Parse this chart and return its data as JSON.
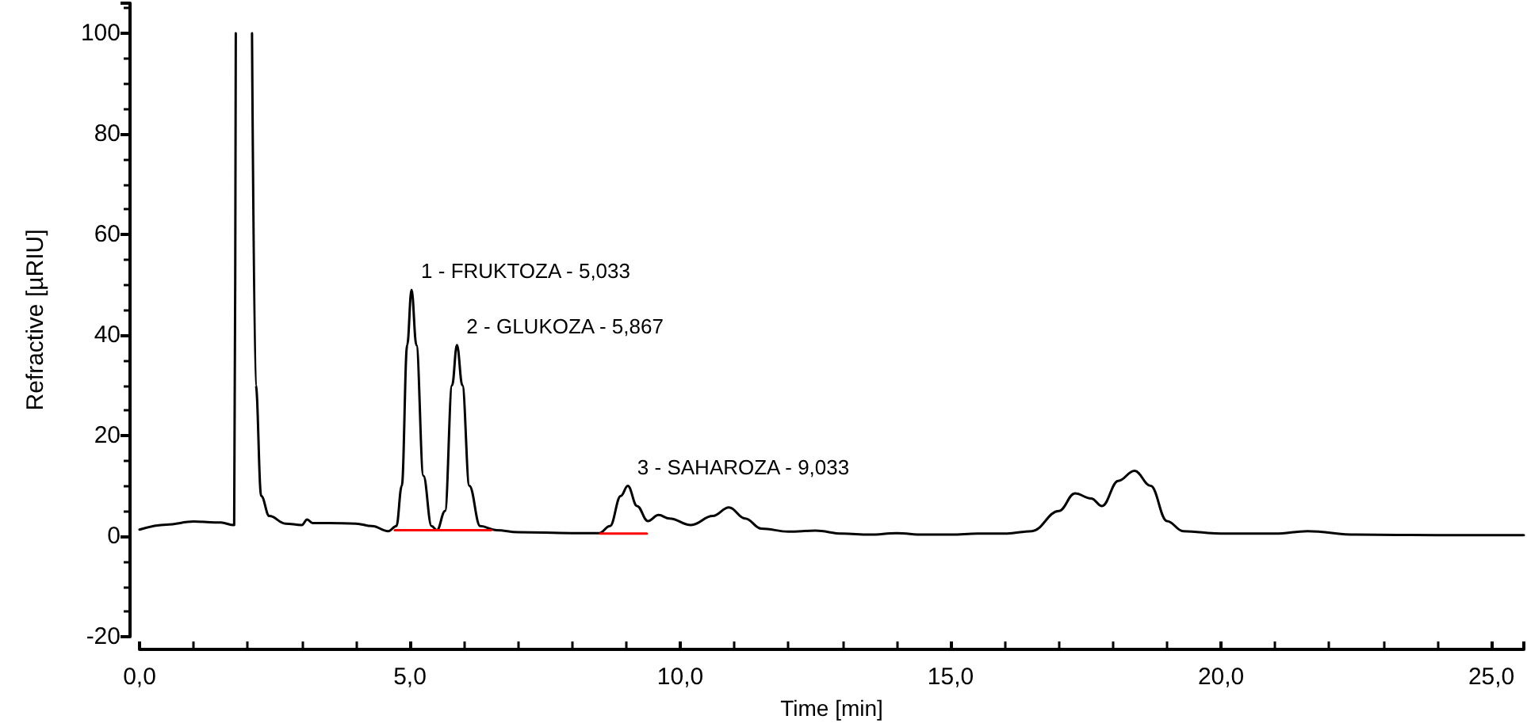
{
  "chart_data": {
    "type": "line",
    "xlabel": "Time [min]",
    "ylabel": "Refractive [µRIU]",
    "xlim": [
      0,
      25.6
    ],
    "ylim": [
      -20,
      106
    ],
    "xticks": [
      {
        "value": 0,
        "label": "0,0"
      },
      {
        "value": 5,
        "label": "5,0"
      },
      {
        "value": 10,
        "label": "10,0"
      },
      {
        "value": 15,
        "label": "15,0"
      },
      {
        "value": 20,
        "label": "20,0"
      },
      {
        "value": 25,
        "label": "25,0"
      }
    ],
    "yticks": [
      -20,
      0,
      20,
      40,
      60,
      80,
      100
    ],
    "grid": false,
    "marker": "none",
    "line_style": "solid",
    "series": [
      {
        "color": "#000000",
        "x": [
          0,
          0.5,
          1.0,
          1.5,
          1.75,
          1.78,
          1.93,
          2.08,
          2.15,
          2.25,
          2.4,
          2.7,
          3.0,
          3.1,
          3.2,
          3.5,
          4.0,
          4.3,
          4.6,
          4.75,
          4.85,
          4.95,
          5.03,
          5.12,
          5.25,
          5.4,
          5.5,
          5.65,
          5.78,
          5.87,
          5.97,
          6.1,
          6.3,
          6.6,
          7.0,
          8.0,
          8.5,
          8.7,
          8.9,
          9.03,
          9.2,
          9.4,
          9.6,
          9.8,
          10.2,
          10.6,
          10.9,
          11.2,
          11.5,
          12.0,
          12.5,
          13.0,
          13.5,
          14.0,
          14.5,
          15.0,
          15.5,
          16.0,
          16.5,
          17.0,
          17.3,
          17.6,
          17.8,
          18.1,
          18.4,
          18.7,
          19.0,
          19.3,
          20.0,
          21.0,
          21.6,
          22.5,
          24.0,
          25.6
        ],
        "values": [
          1.3,
          2.3,
          2.9,
          2.7,
          2.2,
          100,
          null,
          100,
          30,
          8,
          4,
          2.5,
          2.2,
          3.3,
          2.6,
          2.6,
          2.5,
          2.0,
          1.0,
          2,
          10,
          38,
          49,
          38,
          12,
          2,
          1.2,
          5,
          30,
          38,
          30,
          10,
          2,
          1.2,
          0.8,
          0.6,
          0.6,
          2,
          8,
          10,
          6,
          3,
          4.2,
          3.5,
          2.2,
          4,
          5.7,
          3.5,
          1.5,
          0.9,
          1.1,
          0.5,
          0.3,
          0.6,
          0.3,
          0.3,
          0.5,
          0.5,
          1,
          5,
          8.5,
          7.5,
          6,
          11,
          13,
          10,
          3,
          1,
          0.5,
          0.5,
          1.0,
          0.3,
          0.2,
          0.2
        ]
      },
      {
        "color": "#ff0000",
        "x": [
          4.72,
          6.5
        ],
        "values": [
          1.2,
          1.2
        ]
      },
      {
        "color": "#ff0000",
        "x": [
          8.52,
          9.38
        ],
        "values": [
          0.5,
          0.5
        ]
      }
    ],
    "annotations": [
      {
        "text": "1 - FRUKTOZA - 5,033",
        "x": 5.03,
        "y": 49
      },
      {
        "text": "2 - GLUKOZA - 5,867",
        "x": 5.87,
        "y": 38
      },
      {
        "text": "3 - SAHAROZA - 9,033",
        "x": 9.03,
        "y": 10
      }
    ]
  }
}
